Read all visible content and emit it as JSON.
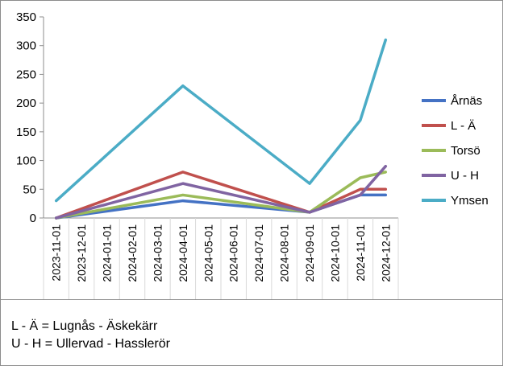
{
  "chart_data": {
    "type": "line",
    "title": "",
    "xlabel": "",
    "ylabel": "",
    "ylim": [
      0,
      350
    ],
    "yticks": [
      0,
      50,
      100,
      150,
      200,
      250,
      300,
      350
    ],
    "grid": false,
    "legend_position": "right",
    "categories": [
      "2023-11-01",
      "2023-12-01",
      "2024-01-01",
      "2024-02-01",
      "2024-03-01",
      "2024-04-01",
      "2024-05-01",
      "2024-06-01",
      "2024-07-01",
      "2024-08-01",
      "2024-09-01",
      "2024-10-01",
      "2024-11-01",
      "2024-12-01"
    ],
    "series": [
      {
        "name": "Årnäs",
        "color": "#4472c4",
        "values": [
          0,
          null,
          null,
          null,
          null,
          30,
          null,
          null,
          null,
          null,
          10,
          null,
          40,
          40
        ]
      },
      {
        "name": "L - Ä",
        "color": "#c0504d",
        "values": [
          0,
          null,
          null,
          null,
          null,
          80,
          null,
          null,
          null,
          null,
          10,
          null,
          50,
          50
        ]
      },
      {
        "name": "Torsö",
        "color": "#9bbb59",
        "values": [
          0,
          null,
          null,
          null,
          null,
          40,
          null,
          null,
          null,
          null,
          10,
          null,
          70,
          80
        ]
      },
      {
        "name": "U - H",
        "color": "#8064a2",
        "values": [
          0,
          null,
          null,
          null,
          null,
          60,
          null,
          null,
          null,
          null,
          10,
          null,
          40,
          90
        ]
      },
      {
        "name": "Ymsen",
        "color": "#4bacc6",
        "values": [
          30,
          null,
          null,
          null,
          null,
          230,
          null,
          null,
          null,
          null,
          60,
          null,
          170,
          310
        ]
      }
    ]
  },
  "notes": {
    "line1": "L  - Ä = Lugnås - Äskekärr",
    "line2": "U - H = Ullervad - Hasslerör"
  }
}
